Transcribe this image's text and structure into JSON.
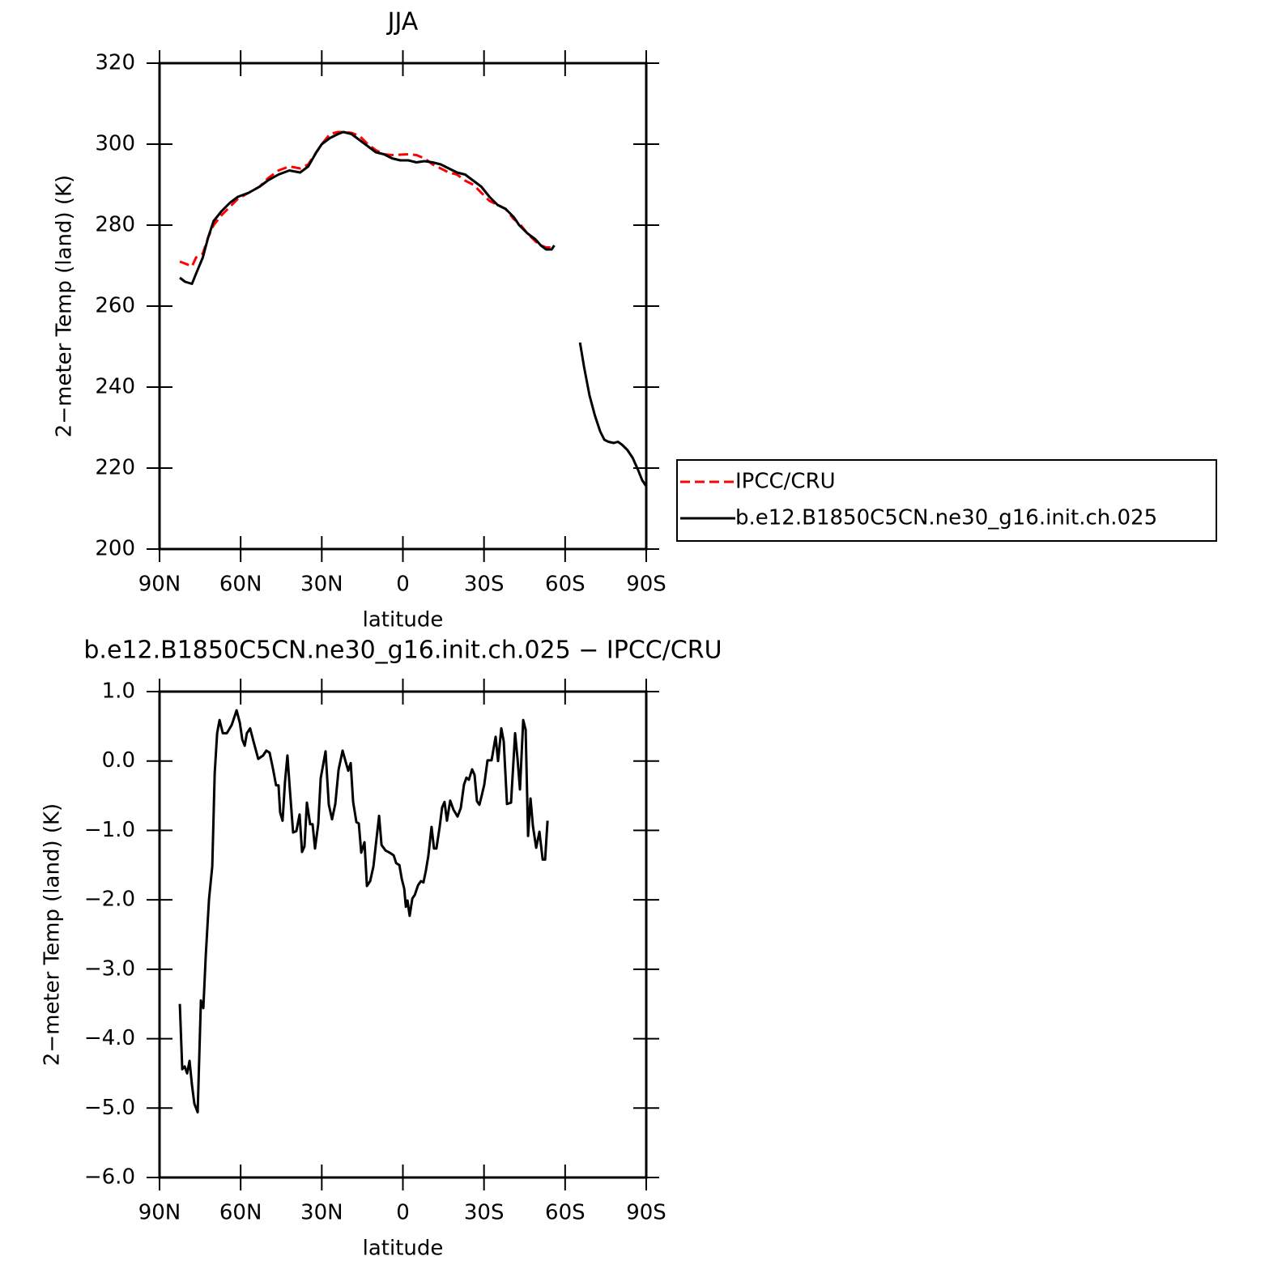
{
  "chart_data": [
    {
      "type": "line",
      "title": "JJA",
      "x_label": "latitude",
      "y_label": "2−meter Temp (land) (K)",
      "x": [
        82.5,
        80.5,
        78,
        76.5,
        74,
        72,
        70,
        67,
        64,
        61,
        57,
        53,
        50,
        46,
        42,
        38,
        35,
        32,
        30,
        27,
        24,
        22,
        19,
        16,
        13,
        10,
        7,
        4,
        1,
        -2,
        -5,
        -8,
        -11,
        -14,
        -17,
        -20,
        -23,
        -26,
        -29,
        -32,
        -35,
        -38,
        -41,
        -43,
        -46,
        -49,
        -51,
        -53,
        -55,
        -56,
        -60,
        -65.5,
        -67,
        -69,
        -71,
        -73,
        -74.5,
        -76,
        -78,
        -79.5,
        -81,
        -83,
        -85,
        -87,
        -88.5,
        -90
      ],
      "series": [
        {
          "name": "IPCC/CRU",
          "color": "#ff0000",
          "line_style": "dashed",
          "values": [
            271,
            270.5,
            269.8,
            272,
            273,
            277,
            280,
            282.5,
            284.5,
            286.5,
            288,
            289.5,
            291.5,
            293.5,
            294.5,
            294,
            295,
            298,
            300,
            302.5,
            303,
            303,
            302.8,
            302,
            300,
            298.5,
            297.5,
            297.3,
            297.4,
            297.5,
            297.3,
            296.5,
            295,
            294,
            293,
            292.5,
            291,
            290,
            288,
            286,
            285,
            284,
            281.5,
            280.5,
            278,
            276,
            275,
            274.5,
            274.5,
            275,
            null,
            null,
            null,
            null,
            null,
            null,
            null,
            null,
            null,
            null,
            null,
            null,
            null,
            null,
            null,
            null
          ]
        },
        {
          "name": "b.e12.B1850C5CN.ne30_g16.init.ch.025",
          "color": "#000000",
          "line_style": "solid",
          "values": [
            267,
            266,
            265.5,
            268,
            272,
            277,
            281,
            283.5,
            285.5,
            287,
            288,
            289.5,
            291,
            292.5,
            293.5,
            293,
            294.5,
            298,
            300,
            301.5,
            302.5,
            303,
            302.5,
            301,
            299.5,
            298,
            297.5,
            296.5,
            296,
            296,
            295.5,
            295.8,
            295.5,
            295,
            294,
            293,
            292.5,
            291,
            289.5,
            287,
            285,
            284,
            282,
            280,
            278,
            276.5,
            275,
            274,
            274,
            275,
            null,
            251,
            245,
            238,
            233,
            229,
            227,
            226.5,
            226.2,
            226.5,
            225.8,
            224.5,
            222.5,
            219.5,
            217,
            215.5
          ]
        }
      ],
      "xlim": [
        90,
        -90
      ],
      "xticks": [
        {
          "value": 90,
          "label": "90N"
        },
        {
          "value": 60,
          "label": "60N"
        },
        {
          "value": 30,
          "label": "30N"
        },
        0,
        {
          "value": -30,
          "label": "30S"
        },
        {
          "value": -60,
          "label": "60S"
        },
        {
          "value": -90,
          "label": "90S"
        }
      ],
      "ylim": [
        200,
        320
      ],
      "yticks": [
        200,
        220,
        240,
        260,
        280,
        300,
        320
      ],
      "legend": "outside right"
    },
    {
      "type": "line",
      "title": "b.e12.B1850C5CN.ne30_g16.init.ch.025 − IPCC/CRU",
      "x_label": "latitude",
      "y_label": "2−meter Temp (land) (K)",
      "x": [
        82.5,
        81.6,
        80.7,
        79.8,
        78.9,
        78,
        77.1,
        75.9,
        74.7,
        73.8,
        72.9,
        71.7,
        70.5,
        69.6,
        68.7,
        67.8,
        66.6,
        65.1,
        63.3,
        61.5,
        60.3,
        59.4,
        58.5,
        57.7,
        56.5,
        55.3,
        53.5,
        51.7,
        50.5,
        49.3,
        48.1,
        46.9,
        46,
        45.4,
        44.5,
        43.6,
        42.7,
        41.8,
        40.6,
        39.4,
        38.2,
        37.3,
        36.4,
        35.5,
        34.3,
        33.4,
        32.5,
        31.3,
        30.4,
        28.6,
        27.4,
        26.2,
        25,
        23.8,
        22.3,
        21.1,
        20.2,
        19.3,
        18.4,
        17.2,
        16.3,
        15.4,
        14.2,
        13.3,
        12.1,
        10.9,
        9.7,
        8.8,
        7.9,
        6.4,
        4.9,
        3.4,
        2.5,
        1.3,
        0.4,
        -0.5,
        -1.1,
        -1.7,
        -2.5,
        -3.5,
        -4.4,
        -5.6,
        -6.7,
        -7.6,
        -8.5,
        -9.4,
        -10.6,
        -11.5,
        -12.4,
        -13.6,
        -14.5,
        -15.4,
        -16.3,
        -17.5,
        -18.7,
        -20.2,
        -21.4,
        -22.6,
        -23.5,
        -24.4,
        -25.6,
        -26.5,
        -27.4,
        -28.3,
        -29.2,
        -30.1,
        -31.3,
        -32.8,
        -34.3,
        -35.2,
        -36.4,
        -37.3,
        -38.5,
        -40,
        -41.5,
        -42.4,
        -43.3,
        -44.5,
        -45.4,
        -46.3,
        -47.2,
        -48.1,
        -49.3,
        -50.5,
        -51.7,
        -52.6,
        -53.5
      ],
      "values": [
        -3.5,
        -4.44,
        -4.4,
        -4.5,
        -4.32,
        -4.67,
        -4.94,
        -5.06,
        -3.45,
        -3.56,
        -2.8,
        -1.99,
        -1.52,
        -0.18,
        0.4,
        0.59,
        0.4,
        0.4,
        0.52,
        0.73,
        0.55,
        0.31,
        0.22,
        0.4,
        0.47,
        0.29,
        0.03,
        0.08,
        0.15,
        0.12,
        -0.1,
        -0.35,
        -0.35,
        -0.74,
        -0.86,
        -0.3,
        0.08,
        -0.41,
        -1.03,
        -1.01,
        -0.77,
        -1.31,
        -1.23,
        -0.6,
        -0.91,
        -0.91,
        -1.26,
        -0.91,
        -0.25,
        0.14,
        -0.63,
        -0.84,
        -0.62,
        -0.13,
        0.15,
        -0.02,
        -0.14,
        -0.03,
        -0.59,
        -0.88,
        -0.9,
        -1.32,
        -1.17,
        -1.8,
        -1.73,
        -1.52,
        -1.1,
        -0.79,
        -1.21,
        -1.29,
        -1.32,
        -1.36,
        -1.47,
        -1.5,
        -1.7,
        -1.84,
        -2.1,
        -2.01,
        -2.23,
        -1.98,
        -1.93,
        -1.79,
        -1.73,
        -1.75,
        -1.58,
        -1.37,
        -0.95,
        -1.26,
        -1.26,
        -0.95,
        -0.67,
        -0.59,
        -0.86,
        -0.57,
        -0.7,
        -0.8,
        -0.68,
        -0.34,
        -0.24,
        -0.27,
        -0.12,
        -0.2,
        -0.58,
        -0.63,
        -0.49,
        -0.34,
        0.01,
        0.01,
        0.35,
        0,
        0.47,
        0.28,
        -0.62,
        -0.6,
        0.4,
        0.03,
        -0.41,
        0.59,
        0.45,
        -1.08,
        -0.54,
        -0.94,
        -1.25,
        -1.02,
        -1.42,
        -1.42,
        -0.86
      ],
      "color": "#000000",
      "xlim": [
        90,
        -90
      ],
      "xticks": [
        {
          "value": 90,
          "label": "90N"
        },
        {
          "value": 60,
          "label": "60N"
        },
        {
          "value": 30,
          "label": "30N"
        },
        0,
        {
          "value": -30,
          "label": "30S"
        },
        {
          "value": -60,
          "label": "60S"
        },
        {
          "value": -90,
          "label": "90S"
        }
      ],
      "ylim": [
        -6,
        1
      ],
      "yticks": [
        {
          "value": -6,
          "label": "−6.0"
        },
        {
          "value": -5,
          "label": "−5.0"
        },
        {
          "value": -4,
          "label": "−4.0"
        },
        {
          "value": -3,
          "label": "−3.0"
        },
        {
          "value": -2,
          "label": "−2.0"
        },
        {
          "value": -1,
          "label": "−1.0"
        },
        {
          "value": 0,
          "label": "0.0"
        },
        {
          "value": 1,
          "label": "1.0"
        }
      ]
    }
  ]
}
